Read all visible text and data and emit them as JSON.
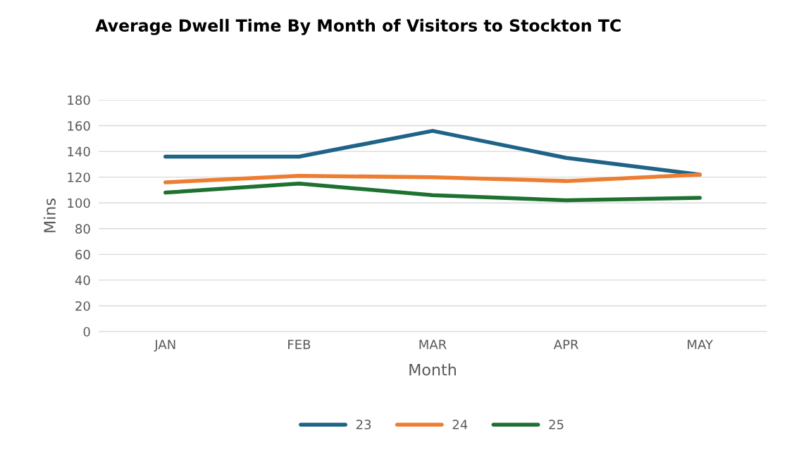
{
  "chart_data": {
    "type": "line",
    "title": "Average Dwell Time By Month of Visitors to Stockton TC",
    "xlabel": "Month",
    "ylabel": "Mins",
    "categories": [
      "JAN",
      "FEB",
      "MAR",
      "APR",
      "MAY"
    ],
    "series": [
      {
        "name": "23",
        "color": "#1f6388",
        "values": [
          136,
          136,
          156,
          135,
          122
        ]
      },
      {
        "name": "24",
        "color": "#ed7d31",
        "values": [
          116,
          121,
          120,
          117,
          122
        ]
      },
      {
        "name": "25",
        "color": "#1e7130",
        "values": [
          108,
          115,
          106,
          102,
          104
        ]
      }
    ],
    "ylim": [
      0,
      180
    ],
    "yticks": [
      0,
      20,
      40,
      60,
      80,
      100,
      120,
      140,
      160,
      180
    ],
    "grid": "y",
    "legend": "bottom",
    "marker": "none",
    "line_style": "solid"
  }
}
